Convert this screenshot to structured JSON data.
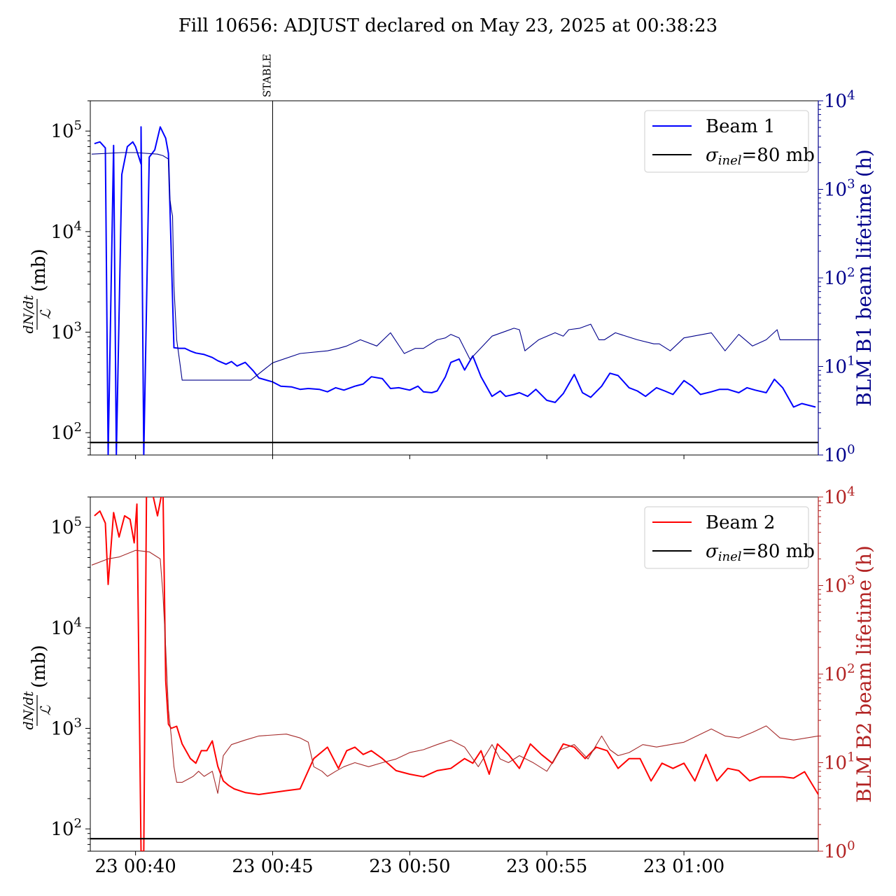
{
  "title": "Fill 10656: ADJUST declared on May 23, 2025 at 00:38:23",
  "x_tick_labels": [
    "23 00:40",
    "23 00:45",
    "23 00:50",
    "23 00:55",
    "23 01:00"
  ],
  "colors": {
    "beam1": "#0000ff",
    "beam1_lifetime": "#00008b",
    "beam1_axis": "#00008b",
    "beam2": "#ff0000",
    "beam2_lifetime": "#a52a2a",
    "beam2_axis": "#b22222",
    "reference": "#000000"
  },
  "chart_data": [
    {
      "type": "line",
      "panel": "top",
      "ylabel_left": "dN/dt / ℒ (mb)",
      "ylabel_left_parts": {
        "numerator": "dN/dt",
        "denominator": "ℒ",
        "unit": "(mb)"
      },
      "ylabel_right": "BLM B1 beam lifetime (h)",
      "yscale_left": "log",
      "yscale_right": "log",
      "ylim_left": [
        60,
        200000
      ],
      "ylim_right": [
        1,
        10000
      ],
      "left_tick_labels": [
        "10^2",
        "10^3",
        "10^4",
        "10^5"
      ],
      "right_tick_labels": [
        "10^0",
        "10^1",
        "10^2",
        "10^3",
        "10^4"
      ],
      "x_unit": "minutes after 00:40 on May 23, 2025",
      "xlim": [
        -1.65,
        24.9
      ],
      "annotation": {
        "text": "STABLE",
        "x": 5.0
      },
      "legend": {
        "position": "top-right",
        "entries": [
          "Beam 1",
          "σinel=80 mb"
        ]
      },
      "series": [
        {
          "name": "Beam 1",
          "axis": "left",
          "x": [
            -1.5,
            -1.3,
            -1.1,
            -1.0,
            -1.0,
            -0.8,
            -0.7,
            -0.7,
            -0.5,
            -0.3,
            -0.1,
            0.0,
            0.2,
            0.2,
            0.3,
            0.3,
            0.5,
            0.7,
            0.9,
            1.1,
            1.2,
            1.4,
            1.6,
            1.8,
            2.0,
            2.2,
            2.5,
            2.8,
            3.0,
            3.3,
            3.5,
            3.7,
            4.0,
            4.3,
            4.5,
            5.0,
            5.3,
            5.7,
            6.0,
            6.3,
            6.7,
            7.0,
            7.3,
            7.6,
            8.0,
            8.3,
            8.6,
            9.0,
            9.3,
            9.6,
            10.0,
            10.3,
            10.5,
            10.8,
            11.0,
            11.3,
            11.5,
            11.8,
            12.0,
            12.3,
            12.6,
            13.0,
            13.3,
            13.5,
            13.8,
            14.0,
            14.3,
            14.6,
            15.0,
            15.3,
            15.6,
            16.0,
            16.3,
            16.6,
            17.0,
            17.3,
            17.6,
            18.0,
            18.3,
            18.6,
            19.0,
            19.3,
            19.6,
            20.0,
            20.3,
            20.6,
            21.0,
            21.3,
            21.6,
            22.0,
            22.3,
            22.6,
            23.0,
            23.3,
            23.6,
            24.0,
            24.3,
            24.8
          ],
          "y": [
            75000,
            78000,
            68000,
            60,
            60,
            72000,
            60,
            60,
            37000,
            70000,
            78000,
            70000,
            47000,
            110000,
            60,
            60,
            55000,
            65000,
            110000,
            85000,
            60000,
            700,
            690,
            690,
            650,
            620,
            600,
            560,
            520,
            480,
            510,
            460,
            500,
            410,
            350,
            320,
            290,
            285,
            270,
            275,
            270,
            255,
            280,
            265,
            290,
            305,
            360,
            345,
            275,
            280,
            265,
            290,
            255,
            250,
            260,
            360,
            500,
            540,
            420,
            580,
            360,
            230,
            260,
            230,
            240,
            250,
            230,
            270,
            210,
            200,
            245,
            380,
            250,
            225,
            290,
            390,
            370,
            280,
            260,
            230,
            280,
            260,
            240,
            330,
            290,
            240,
            255,
            270,
            270,
            250,
            280,
            265,
            250,
            340,
            280,
            180,
            195,
            180
          ]
        },
        {
          "name": "BLM B1 beam lifetime",
          "axis": "right",
          "x": [
            -1.6,
            -0.5,
            0.0,
            0.8,
            1.0,
            1.2,
            1.25,
            1.3,
            1.35,
            1.4,
            1.5,
            1.6,
            1.7,
            1.9,
            2.5,
            3.5,
            4.2,
            5.0,
            6.0,
            7.0,
            7.4,
            7.7,
            8.2,
            8.8,
            9.3,
            9.8,
            10.2,
            10.5,
            11.0,
            11.3,
            11.5,
            11.8,
            12.2,
            13.0,
            13.5,
            13.8,
            14.0,
            14.2,
            14.7,
            15.3,
            15.6,
            15.8,
            16.2,
            16.6,
            16.9,
            17.1,
            17.5,
            18.3,
            18.9,
            19.1,
            19.5,
            20.0,
            21.0,
            21.5,
            22.0,
            22.5,
            23.0,
            23.4,
            23.5,
            24.0,
            24.9
          ],
          "y": [
            2500,
            2600,
            2600,
            2500,
            2400,
            2200,
            800,
            600,
            500,
            80,
            20,
            12,
            7,
            7,
            7,
            7,
            7,
            11,
            14,
            15,
            16,
            17,
            20,
            17,
            24,
            14,
            16,
            16,
            20,
            21,
            23,
            21,
            12,
            22,
            25,
            27,
            26,
            15,
            20,
            24,
            22,
            26,
            27,
            30,
            20,
            20,
            24,
            20,
            18,
            18,
            15,
            21,
            24,
            15,
            23,
            17,
            20,
            26,
            20,
            20,
            20
          ]
        },
        {
          "name": "σinel=80 mb",
          "axis": "left",
          "x": [
            -1.65,
            24.9
          ],
          "y": [
            80,
            80
          ]
        }
      ]
    },
    {
      "type": "line",
      "panel": "bottom",
      "ylabel_left": "dN/dt / ℒ (mb)",
      "ylabel_left_parts": {
        "numerator": "dN/dt",
        "denominator": "ℒ",
        "unit": "(mb)"
      },
      "ylabel_right": "BLM B2 beam lifetime (h)",
      "yscale_left": "log",
      "yscale_right": "log",
      "ylim_left": [
        60,
        200000
      ],
      "ylim_right": [
        1,
        10000
      ],
      "left_tick_labels": [
        "10^2",
        "10^3",
        "10^4",
        "10^5"
      ],
      "right_tick_labels": [
        "10^0",
        "10^1",
        "10^2",
        "10^3",
        "10^4"
      ],
      "x_unit": "minutes after 00:40 on May 23, 2025",
      "xlim": [
        -1.65,
        24.9
      ],
      "legend": {
        "position": "top-right",
        "entries": [
          "Beam 2",
          "σinel=80 mb"
        ]
      },
      "series": [
        {
          "name": "Beam 2",
          "axis": "left",
          "x": [
            -1.5,
            -1.3,
            -1.1,
            -1.0,
            -0.8,
            -0.6,
            -0.4,
            -0.2,
            -0.05,
            0.05,
            0.2,
            0.2,
            0.3,
            0.3,
            0.4,
            0.6,
            0.8,
            1.0,
            1.1,
            1.2,
            1.3,
            1.5,
            1.7,
            2.0,
            2.2,
            2.4,
            2.6,
            2.8,
            3.0,
            3.2,
            3.4,
            3.6,
            4.0,
            4.5,
            5.0,
            5.5,
            6.0,
            6.5,
            7.0,
            7.4,
            7.7,
            8.0,
            8.3,
            8.6,
            9.0,
            9.5,
            10.0,
            10.5,
            11.0,
            11.5,
            12.0,
            12.3,
            12.6,
            12.9,
            13.2,
            13.6,
            14.0,
            14.4,
            14.8,
            15.2,
            15.6,
            16.0,
            16.4,
            16.8,
            17.2,
            17.6,
            18.0,
            18.4,
            18.8,
            19.2,
            19.6,
            20.0,
            20.4,
            20.8,
            21.2,
            21.6,
            22.0,
            22.4,
            22.8,
            23.2,
            23.6,
            24.0,
            24.4,
            24.9
          ],
          "y": [
            130000,
            145000,
            110000,
            27000,
            140000,
            80000,
            130000,
            120000,
            70000,
            170000,
            60,
            60,
            60,
            60,
            230000,
            230000,
            130000,
            250000,
            3000,
            1100,
            1000,
            1050,
            700,
            500,
            450,
            600,
            600,
            750,
            420,
            300,
            270,
            250,
            230,
            220,
            230,
            240,
            250,
            500,
            650,
            400,
            600,
            650,
            550,
            600,
            500,
            380,
            350,
            330,
            380,
            400,
            500,
            450,
            600,
            350,
            700,
            550,
            400,
            700,
            550,
            450,
            700,
            650,
            500,
            650,
            600,
            400,
            500,
            500,
            300,
            450,
            400,
            450,
            300,
            550,
            300,
            400,
            380,
            300,
            330,
            330,
            330,
            320,
            370,
            220
          ]
        },
        {
          "name": "BLM B2 beam lifetime",
          "axis": "right",
          "x": [
            -1.6,
            -1.0,
            -0.6,
            0.0,
            0.5,
            0.9,
            1.0,
            1.1,
            1.2,
            1.3,
            1.4,
            1.5,
            1.7,
            2.1,
            2.3,
            2.5,
            2.8,
            3.0,
            3.2,
            3.5,
            4.0,
            4.5,
            5.5,
            6.0,
            6.3,
            6.5,
            6.8,
            7.0,
            7.3,
            7.6,
            8.0,
            8.5,
            9.0,
            9.5,
            10.0,
            10.5,
            11.0,
            11.5,
            12.0,
            12.5,
            13.0,
            13.3,
            13.6,
            14.0,
            14.5,
            15.0,
            15.5,
            16.0,
            16.5,
            17.0,
            17.3,
            17.6,
            18.0,
            18.5,
            19.0,
            20.0,
            21.0,
            21.5,
            22.0,
            22.5,
            23.0,
            23.5,
            24.0,
            24.9
          ],
          "y": [
            1700,
            2000,
            2100,
            2500,
            2400,
            2000,
            800,
            200,
            40,
            20,
            9,
            6,
            6,
            7,
            8,
            7,
            8,
            4.5,
            12,
            16,
            18,
            20,
            21,
            19,
            17,
            9,
            8,
            7,
            8,
            9,
            10,
            9,
            10,
            11,
            13,
            14,
            16,
            18,
            15,
            9,
            16,
            11,
            10,
            12,
            10,
            8,
            14,
            16,
            11,
            20,
            14,
            12,
            13,
            16,
            15,
            17,
            24,
            20,
            19,
            22,
            26,
            19,
            18,
            20
          ]
        },
        {
          "name": "σinel=80 mb",
          "axis": "left",
          "x": [
            -1.65,
            24.9
          ],
          "y": [
            80,
            80
          ]
        }
      ]
    }
  ]
}
